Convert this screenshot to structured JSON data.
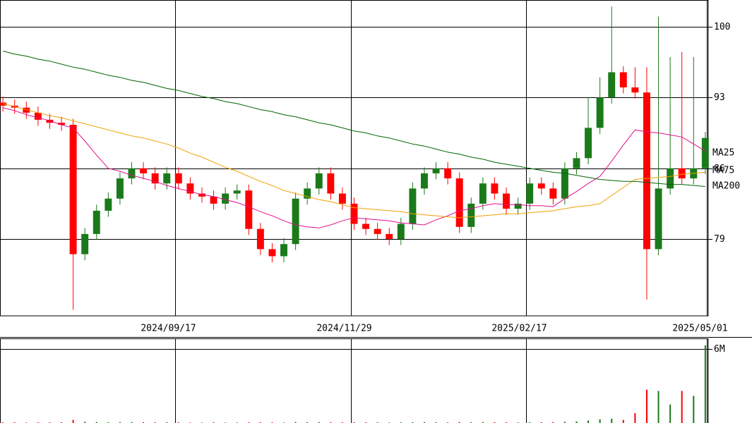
{
  "chart_data": {
    "type": "candlestick",
    "x": [
      0,
      4,
      8,
      12,
      16,
      20,
      24,
      28,
      32,
      36,
      40,
      44,
      48,
      52,
      56,
      60,
      64,
      68,
      72,
      76,
      80,
      84,
      88,
      92,
      96,
      100,
      104,
      108,
      112,
      116,
      120,
      124,
      128,
      132,
      136,
      140,
      144,
      148,
      152,
      156,
      160,
      164,
      168,
      172,
      176,
      180,
      184,
      188,
      192,
      196,
      200,
      204,
      208,
      212,
      216,
      220,
      224,
      228,
      232,
      236,
      240
    ],
    "open": [
      92.5,
      92.2,
      92,
      91.5,
      90.8,
      90.5,
      90.3,
      77.5,
      79.5,
      81.8,
      83,
      85,
      86,
      85.5,
      84.5,
      85.5,
      84.5,
      83.5,
      83.2,
      82.5,
      83.5,
      83.8,
      80,
      78,
      77.3,
      78.5,
      83,
      84,
      85.5,
      83.5,
      82.5,
      80.5,
      80,
      79.5,
      79,
      80.5,
      84,
      85.5,
      86,
      85,
      80.2,
      82.5,
      84.5,
      83.5,
      82,
      82.5,
      84.5,
      84,
      83,
      86,
      87,
      90,
      93,
      95.5,
      94,
      93.5,
      78,
      84,
      86,
      85,
      86
    ],
    "high": [
      93.1,
      92.8,
      92.6,
      92.1,
      91.4,
      91.1,
      90.9,
      80.1,
      82.4,
      83.6,
      85.6,
      86.6,
      86.6,
      86.1,
      86.1,
      86.1,
      85.1,
      84.1,
      83.8,
      84.1,
      84.4,
      84.4,
      80.6,
      78.6,
      79.1,
      83.6,
      84.6,
      86.1,
      86.1,
      84.1,
      83.1,
      81.1,
      80.6,
      80.1,
      81.1,
      84.6,
      86.1,
      86.6,
      86.6,
      85.6,
      83.1,
      85.1,
      85.1,
      84.1,
      83.1,
      85.1,
      85.1,
      84.6,
      86.6,
      87.6,
      93,
      95,
      102,
      96.1,
      96,
      96,
      101,
      97,
      97.5,
      97,
      89.6
    ],
    "low": [
      91.6,
      91.4,
      90.9,
      90.2,
      89.9,
      89.7,
      72,
      76.9,
      78.9,
      81.2,
      82.4,
      84.4,
      84.9,
      83.9,
      83.9,
      83.9,
      82.9,
      82.6,
      81.9,
      81.9,
      82.9,
      79.4,
      77.4,
      76.7,
      76.7,
      77.9,
      82.4,
      83.4,
      82.9,
      81.9,
      79.9,
      79.4,
      78.9,
      78.4,
      78.4,
      79.9,
      83.4,
      84.9,
      84.4,
      79.6,
      79.6,
      81.9,
      82.9,
      81.4,
      81.4,
      81.9,
      83.4,
      82.4,
      82.4,
      85.4,
      86.4,
      89.4,
      92.4,
      93.4,
      92.9,
      73,
      77.4,
      83.4,
      84.4,
      84.4,
      85.4
    ],
    "close": [
      92.2,
      92,
      91.5,
      90.8,
      90.5,
      90.3,
      77.5,
      79.5,
      81.8,
      83,
      85,
      86,
      85.5,
      84.5,
      85.5,
      84.5,
      83.5,
      83.2,
      82.5,
      83.5,
      83.8,
      80,
      78,
      77.3,
      78.5,
      83,
      84,
      85.5,
      83.5,
      82.5,
      80.5,
      80,
      79.5,
      79,
      80.5,
      84,
      85.5,
      86,
      85,
      80.2,
      82.5,
      84.5,
      83.5,
      82,
      82.5,
      84.5,
      84,
      83,
      86,
      87,
      90,
      93,
      95.5,
      94,
      93.5,
      78,
      84,
      86,
      85,
      86,
      89
    ],
    "volume": [
      0.05,
      0.05,
      0.04,
      0.05,
      0.05,
      0.06,
      0.25,
      0.1,
      0.08,
      0.06,
      0.07,
      0.08,
      0.06,
      0.05,
      0.06,
      0.05,
      0.04,
      0.04,
      0.05,
      0.04,
      0.04,
      0.05,
      0.06,
      0.05,
      0.04,
      0.08,
      0.06,
      0.07,
      0.05,
      0.05,
      0.06,
      0.05,
      0.05,
      0.04,
      0.05,
      0.06,
      0.07,
      0.06,
      0.05,
      0.08,
      0.06,
      0.07,
      0.06,
      0.05,
      0.05,
      0.06,
      0.06,
      0.07,
      0.1,
      0.12,
      0.2,
      0.3,
      0.35,
      0.25,
      0.8,
      2.7,
      2.6,
      1.5,
      2.6,
      2.2,
      6.3
    ],
    "up_color": "#1a7a1a",
    "down_color": "#ff0000",
    "series": [
      {
        "name": "MA25",
        "color": "#e0108c",
        "values": [
          92.0,
          91.7,
          91.3,
          91.0,
          90.7,
          90.3,
          90.0,
          88.7,
          87.3,
          86.0,
          85.7,
          85.3,
          85.0,
          84.7,
          84.3,
          84.0,
          83.7,
          83.4,
          83.2,
          82.9,
          82.6,
          82.2,
          81.7,
          81.3,
          80.8,
          80.4,
          80.2,
          80.1,
          80.4,
          80.8,
          81.1,
          81.0,
          80.9,
          80.8,
          80.6,
          80.5,
          80.4,
          80.9,
          81.3,
          81.8,
          82.0,
          82.3,
          82.5,
          82.4,
          82.4,
          82.3,
          82.3,
          82.2,
          83.0,
          83.7,
          84.5,
          85.2,
          86.7,
          88.3,
          89.8,
          89.6,
          89.5,
          89.3,
          89.1,
          88.4,
          87.7
        ]
      },
      {
        "name": "MA75",
        "color": "#f0a000",
        "values": [
          92.4,
          92.1,
          91.8,
          91.5,
          91.2,
          91.0,
          90.7,
          90.4,
          90.1,
          89.8,
          89.5,
          89.2,
          89.0,
          88.7,
          88.4,
          88.0,
          87.5,
          87.1,
          86.6,
          86.1,
          85.7,
          85.2,
          84.7,
          84.3,
          83.8,
          83.5,
          83.2,
          82.9,
          82.7,
          82.4,
          82.1,
          82.0,
          81.9,
          81.8,
          81.7,
          81.5,
          81.4,
          81.3,
          81.2,
          81.1,
          81.2,
          81.3,
          81.4,
          81.5,
          81.5,
          81.6,
          81.7,
          81.8,
          82.0,
          82.2,
          82.3,
          82.5,
          83.3,
          84.1,
          84.9,
          85.0,
          85.1,
          85.2,
          85.4,
          85.5,
          85.6
        ]
      },
      {
        "name": "MA200",
        "color": "#006400",
        "values": [
          97.6,
          97.3,
          97.1,
          96.8,
          96.6,
          96.3,
          96.0,
          95.8,
          95.5,
          95.2,
          95.0,
          94.7,
          94.5,
          94.2,
          93.9,
          93.7,
          93.4,
          93.1,
          92.9,
          92.6,
          92.4,
          92.1,
          91.8,
          91.6,
          91.3,
          91.1,
          90.8,
          90.5,
          90.3,
          90.0,
          89.7,
          89.5,
          89.2,
          89.0,
          88.7,
          88.4,
          88.2,
          87.9,
          87.6,
          87.4,
          87.1,
          86.9,
          86.6,
          86.4,
          86.2,
          86.0,
          85.8,
          85.6,
          85.5,
          85.3,
          85.1,
          84.9,
          84.8,
          84.7,
          84.7,
          84.6,
          84.5,
          84.4,
          84.4,
          84.3,
          84.2
        ]
      }
    ],
    "xlim": [
      -1,
      241
    ],
    "xticks": [
      {
        "value": 58.8,
        "label": "2024/09/17"
      },
      {
        "value": 118.8,
        "label": "2024/11/29"
      },
      {
        "value": 178.8,
        "label": "2025/02/17"
      },
      {
        "value": 240.5,
        "label": "2025/05/01"
      }
    ],
    "ylim": [
      71.4,
      102.65
    ],
    "yticks": [
      79,
      86,
      93,
      100
    ],
    "vlim": [
      0,
      6.86
    ],
    "vticks": [
      {
        "value": 6,
        "label": "6M"
      }
    ],
    "grid": true
  }
}
